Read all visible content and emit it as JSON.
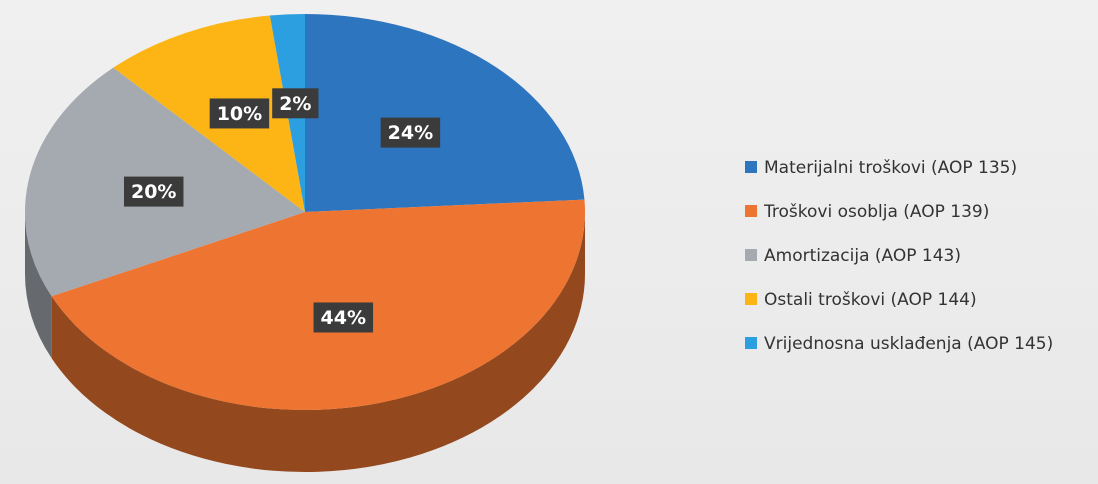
{
  "chart_data": {
    "type": "pie",
    "categories": [
      "Materijalni troškovi (AOP 135)",
      "Troškovi osoblja (AOP 139)",
      "Amortizacija (AOP 143)",
      "Ostali troškovi (AOP 144)",
      "Vrijednosna usklađenja (AOP 145)"
    ],
    "values": [
      24,
      44,
      20,
      10,
      2
    ],
    "value_labels": [
      "24%",
      "44%",
      "20%",
      "10%",
      "2%"
    ],
    "colors": [
      "#2e75c0",
      "#ed7431",
      "#a5a9b0",
      "#fdb515",
      "#2b9fe0"
    ],
    "legend": "right",
    "three_d": true
  }
}
